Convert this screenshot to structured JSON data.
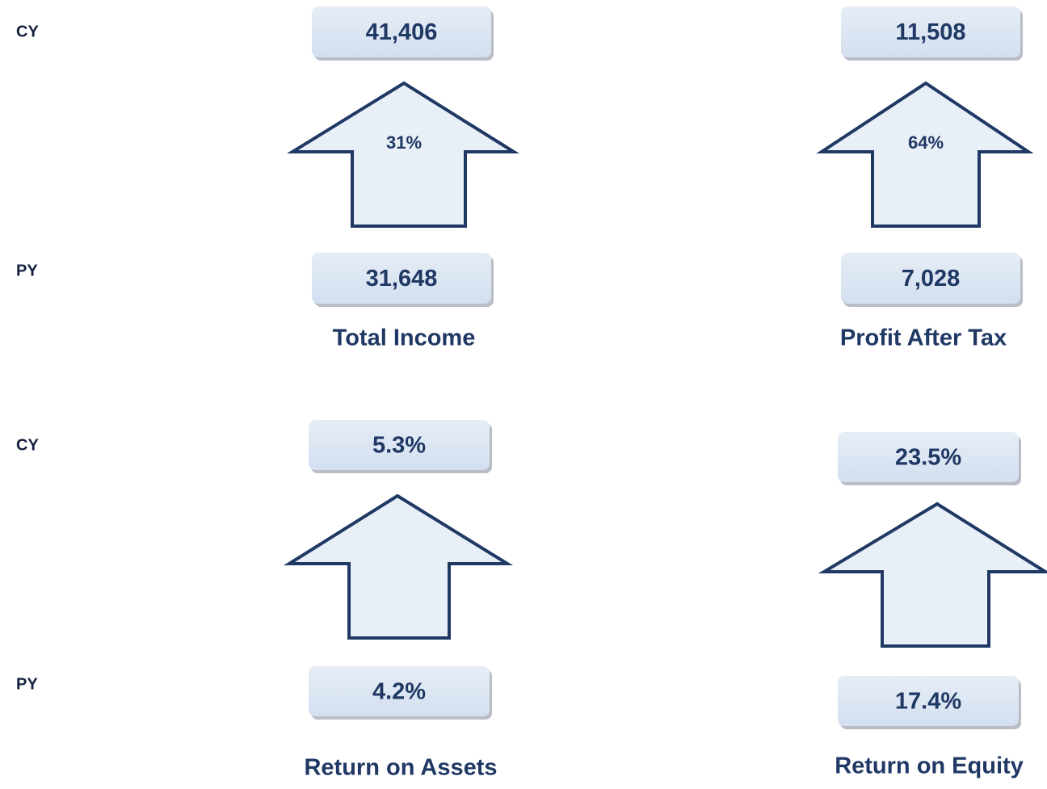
{
  "sections": [
    {
      "cy_label": "CY",
      "py_label": "PY",
      "panels": [
        {
          "title": "Total Income",
          "cy": "41,406",
          "py": "31,648",
          "change": "31%"
        },
        {
          "title": "Profit After Tax",
          "cy": "11,508",
          "py": "7,028",
          "change": "64%"
        }
      ]
    },
    {
      "cy_label": "CY",
      "py_label": "PY",
      "panels": [
        {
          "title": "Return on Assets",
          "cy": "5.3%",
          "py": "4.2%"
        },
        {
          "title": "Return on Equity",
          "cy": "23.5%",
          "py": "17.4%"
        }
      ]
    }
  ]
}
